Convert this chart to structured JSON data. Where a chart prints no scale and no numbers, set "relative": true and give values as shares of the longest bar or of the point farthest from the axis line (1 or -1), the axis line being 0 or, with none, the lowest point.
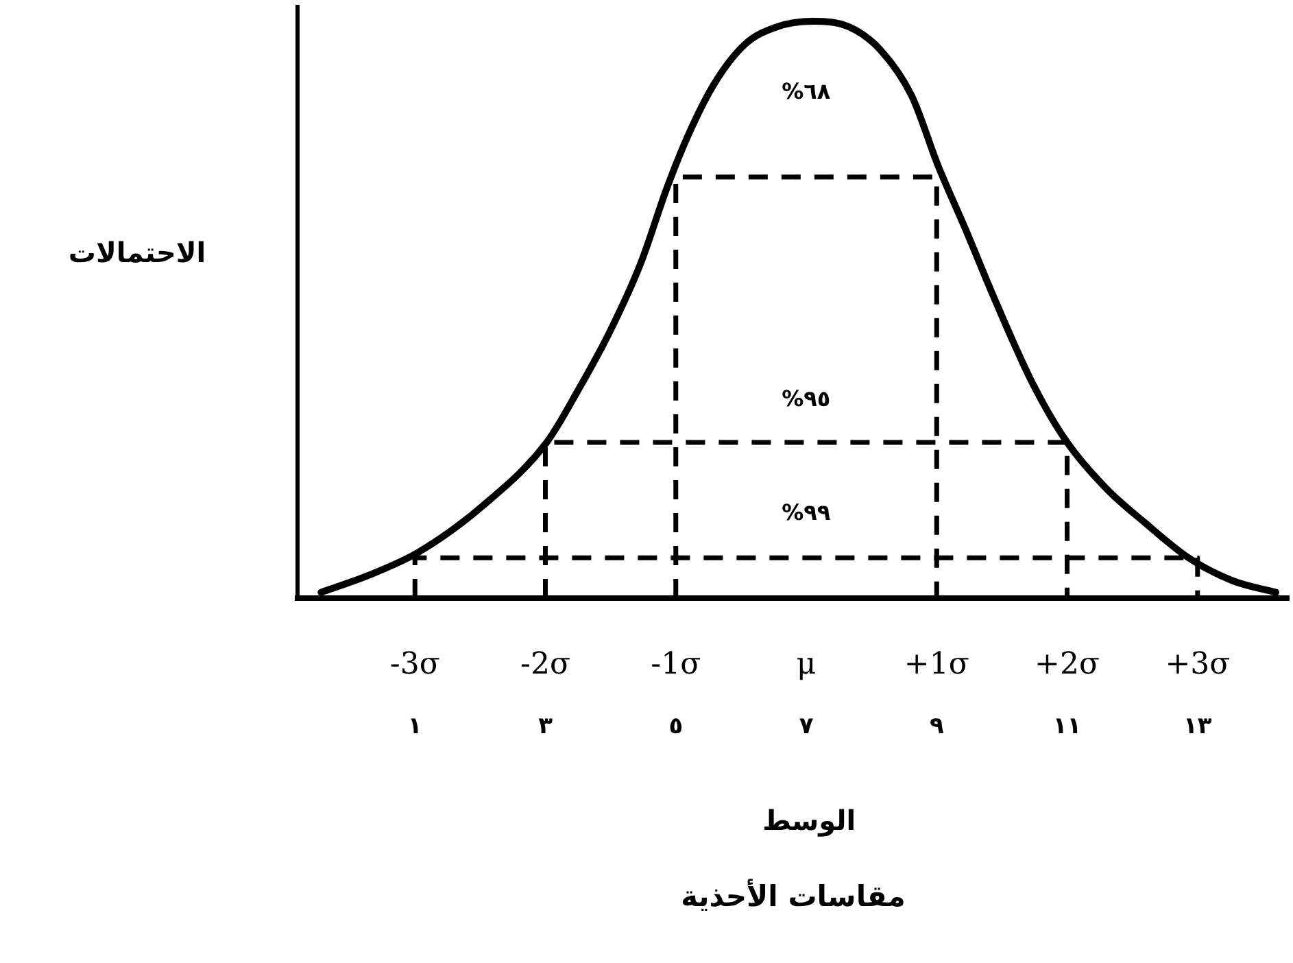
{
  "chart_data": {
    "type": "line",
    "xlabel": "مقاسات الأحذية",
    "ylabel": "الاحتمالات",
    "relative": true,
    "marker": "none",
    "xlim": [
      -3.9,
      3.7
    ],
    "xticks": [
      {
        "value": -3,
        "label": "-3σ"
      },
      {
        "value": -2,
        "label": "-2σ"
      },
      {
        "value": -1,
        "label": "-1σ"
      },
      {
        "value": 0,
        "label": "μ"
      },
      {
        "value": 1,
        "label": "+1σ"
      },
      {
        "value": 2,
        "label": "+2σ"
      },
      {
        "value": 3,
        "label": "+3σ"
      }
    ],
    "x2lim": [
      -0.8,
      14.4
    ],
    "x2ticks": [
      {
        "value": 1,
        "label": "١"
      },
      {
        "value": 3,
        "label": "٣"
      },
      {
        "value": 5,
        "label": "٥"
      },
      {
        "value": 7,
        "label": "٧"
      },
      {
        "value": 9,
        "label": "٩"
      },
      {
        "value": 11,
        "label": "١١"
      },
      {
        "value": 13,
        "label": "١٣"
      }
    ],
    "series": [
      {
        "color": "#000000",
        "line_style": "solid",
        "x": [
          -3.72,
          -3.35,
          -2.97,
          -2.48,
          -1.99,
          -1.75,
          -1.51,
          -1.27,
          -1.07,
          -0.91,
          -0.71,
          -0.47,
          -0.23,
          0.05,
          0.33,
          0.57,
          0.81,
          1.01,
          1.22,
          1.46,
          1.74,
          2.0,
          2.3,
          2.6,
          2.93,
          3.27,
          3.6
        ],
        "values": [
          0.01,
          0.04,
          0.08,
          0.16,
          0.27,
          0.36,
          0.46,
          0.58,
          0.71,
          0.8,
          0.89,
          0.96,
          0.99,
          1,
          0.99,
          0.95,
          0.87,
          0.75,
          0.64,
          0.51,
          0.37,
          0.27,
          0.19,
          0.13,
          0.07,
          0.03,
          0.01
        ]
      },
      {
        "color": "#000000",
        "line_style": "dashed",
        "x": [
          -1,
          -1,
          1,
          1
        ],
        "values": [
          0,
          0.73,
          0.73,
          0
        ]
      },
      {
        "color": "#000000",
        "line_style": "dashed",
        "x": [
          -2,
          -2,
          2,
          2
        ],
        "values": [
          0,
          0.27,
          0.27,
          0
        ]
      },
      {
        "color": "#000000",
        "line_style": "dashed",
        "x": [
          -3,
          -3,
          3,
          3
        ],
        "values": [
          0,
          0.07,
          0.07,
          0
        ]
      }
    ],
    "annotations": [
      "%٦٨",
      "%٩٥",
      "%٩٩",
      "الوسط"
    ]
  }
}
